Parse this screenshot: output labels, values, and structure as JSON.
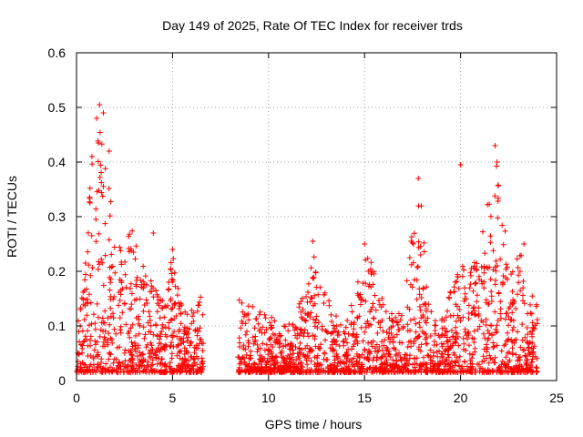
{
  "chart_data": {
    "type": "scatter",
    "title": "Day 149 of 2025, Rate Of TEC Index for receiver trds",
    "xlabel": "GPS time / hours",
    "ylabel": "ROTI / TECUs",
    "xlim": [
      0,
      25
    ],
    "ylim": [
      0,
      0.6
    ],
    "xticks": [
      0,
      5,
      10,
      15,
      20,
      25
    ],
    "xtick_labels": [
      "0",
      "5",
      "10",
      "15",
      "20",
      "25"
    ],
    "yticks": [
      0,
      0.1,
      0.2,
      0.3,
      0.4,
      0.5,
      0.6
    ],
    "ytick_labels": [
      "0",
      "0.1",
      "0.2",
      "0.3",
      "0.4",
      "0.5",
      "0.6"
    ],
    "grid": true,
    "marker": "+",
    "color": "#ff0000",
    "data_gap_hours": [
      6.6,
      8.4
    ],
    "envelope": [
      {
        "x": 0.0,
        "y": 0.08
      },
      {
        "x": 0.3,
        "y": 0.18
      },
      {
        "x": 0.6,
        "y": 0.3
      },
      {
        "x": 0.8,
        "y": 0.45
      },
      {
        "x": 1.0,
        "y": 0.36
      },
      {
        "x": 1.2,
        "y": 0.5
      },
      {
        "x": 1.4,
        "y": 0.42
      },
      {
        "x": 1.7,
        "y": 0.38
      },
      {
        "x": 2.0,
        "y": 0.26
      },
      {
        "x": 2.4,
        "y": 0.24
      },
      {
        "x": 2.8,
        "y": 0.3
      },
      {
        "x": 3.2,
        "y": 0.24
      },
      {
        "x": 3.6,
        "y": 0.2
      },
      {
        "x": 4.0,
        "y": 0.18
      },
      {
        "x": 4.5,
        "y": 0.16
      },
      {
        "x": 5.0,
        "y": 0.24
      },
      {
        "x": 5.5,
        "y": 0.14
      },
      {
        "x": 6.0,
        "y": 0.13
      },
      {
        "x": 6.5,
        "y": 0.16
      },
      {
        "x": 8.5,
        "y": 0.15
      },
      {
        "x": 9.0,
        "y": 0.14
      },
      {
        "x": 10.0,
        "y": 0.12
      },
      {
        "x": 11.0,
        "y": 0.1
      },
      {
        "x": 11.8,
        "y": 0.16
      },
      {
        "x": 12.3,
        "y": 0.25
      },
      {
        "x": 12.8,
        "y": 0.19
      },
      {
        "x": 13.5,
        "y": 0.12
      },
      {
        "x": 14.0,
        "y": 0.1
      },
      {
        "x": 14.5,
        "y": 0.16
      },
      {
        "x": 15.0,
        "y": 0.24
      },
      {
        "x": 15.5,
        "y": 0.22
      },
      {
        "x": 16.0,
        "y": 0.14
      },
      {
        "x": 17.0,
        "y": 0.12
      },
      {
        "x": 17.6,
        "y": 0.32
      },
      {
        "x": 17.9,
        "y": 0.37
      },
      {
        "x": 18.3,
        "y": 0.15
      },
      {
        "x": 19.0,
        "y": 0.12
      },
      {
        "x": 20.0,
        "y": 0.22
      },
      {
        "x": 20.5,
        "y": 0.2
      },
      {
        "x": 21.0,
        "y": 0.26
      },
      {
        "x": 21.5,
        "y": 0.34
      },
      {
        "x": 21.8,
        "y": 0.43
      },
      {
        "x": 22.2,
        "y": 0.3
      },
      {
        "x": 22.7,
        "y": 0.2
      },
      {
        "x": 23.2,
        "y": 0.25
      },
      {
        "x": 23.6,
        "y": 0.17
      },
      {
        "x": 24.0,
        "y": 0.14
      }
    ],
    "notable_points": [
      {
        "x": 1.2,
        "y": 0.505
      },
      {
        "x": 1.05,
        "y": 0.48
      },
      {
        "x": 1.4,
        "y": 0.49
      },
      {
        "x": 0.8,
        "y": 0.41
      },
      {
        "x": 1.7,
        "y": 0.42
      },
      {
        "x": 4.0,
        "y": 0.27
      },
      {
        "x": 5.0,
        "y": 0.24
      },
      {
        "x": 12.3,
        "y": 0.255
      },
      {
        "x": 15.0,
        "y": 0.25
      },
      {
        "x": 17.8,
        "y": 0.37
      },
      {
        "x": 20.0,
        "y": 0.395
      },
      {
        "x": 21.8,
        "y": 0.43
      },
      {
        "x": 21.9,
        "y": 0.4
      },
      {
        "x": 23.3,
        "y": 0.25
      }
    ]
  }
}
